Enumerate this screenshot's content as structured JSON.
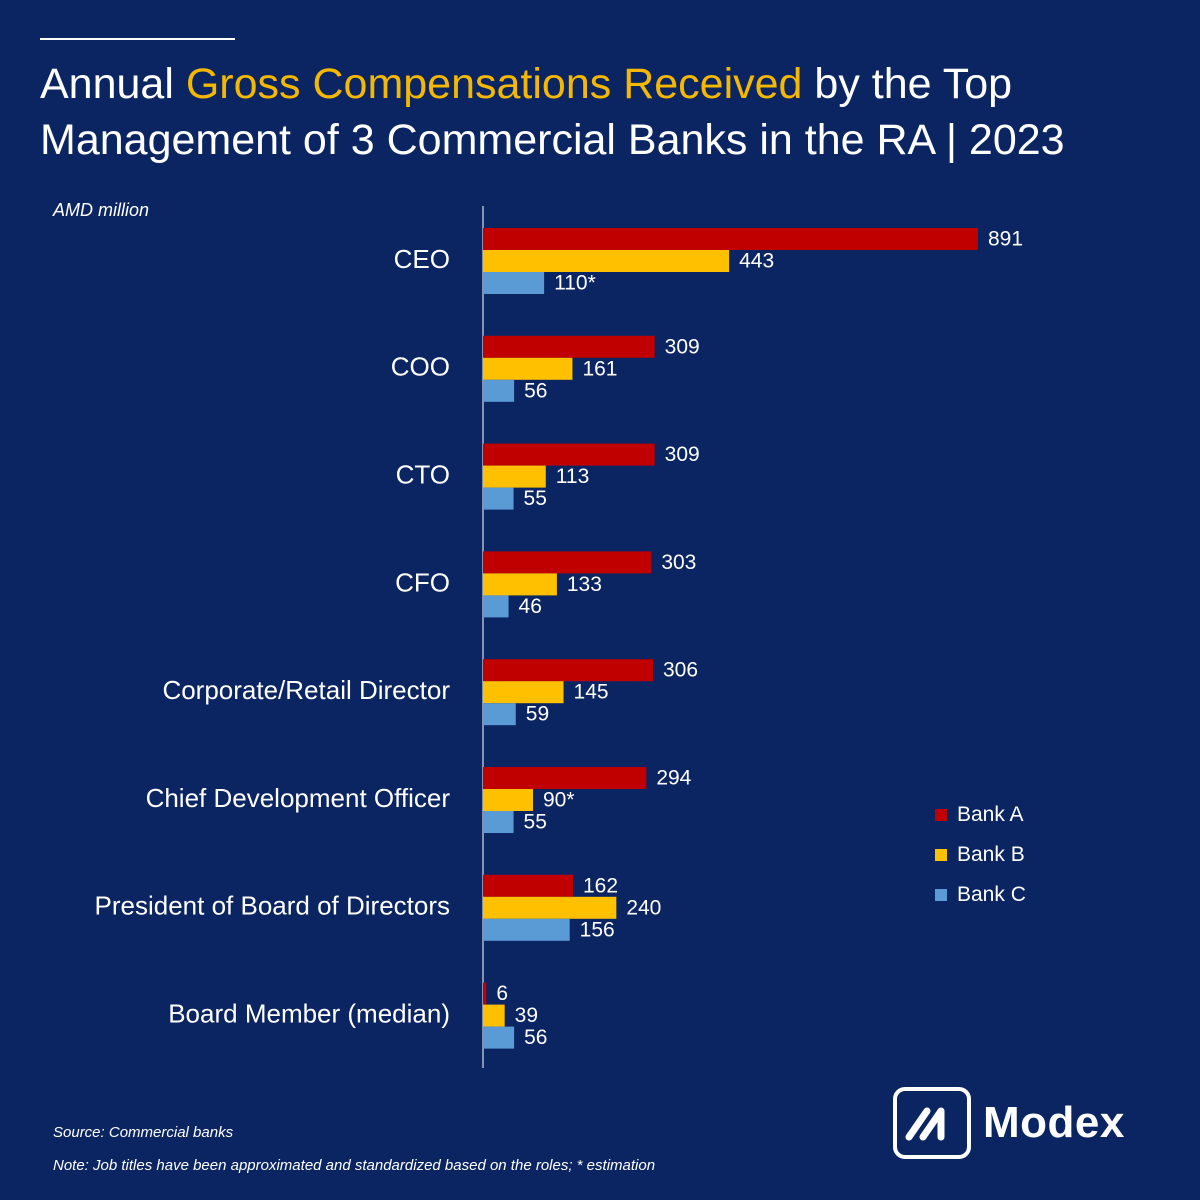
{
  "title": {
    "part1": "Annual ",
    "highlight": "Gross Compensations Received",
    "part2": " by the Top Management of 3 Commercial Banks in the RA | 2023"
  },
  "unit_label": "AMD million",
  "footer": {
    "source": "Source: Commercial banks",
    "note": "Note: Job titles have been approximated and standardized based on the roles; * estimation"
  },
  "logo": {
    "text": "Modex"
  },
  "colors": {
    "background": "#0b2563",
    "highlight": "#f5b800",
    "bank_a": "#c00000",
    "bank_b": "#ffc000",
    "bank_c": "#5b9bd5"
  },
  "chart_data": {
    "type": "bar",
    "orientation": "horizontal",
    "categories": [
      "CEO",
      "COO",
      "CTO",
      "CFO",
      "Corporate/Retail Director",
      "Chief Development Officer",
      "President of Board of Directors",
      "Board Member (median)"
    ],
    "series": [
      {
        "name": "Bank A",
        "color": "#c00000",
        "values": [
          891,
          309,
          309,
          303,
          306,
          294,
          162,
          6
        ],
        "labels": [
          "891",
          "309",
          "309",
          "303",
          "306",
          "294",
          "162",
          "6"
        ]
      },
      {
        "name": "Bank B",
        "color": "#ffc000",
        "values": [
          443,
          161,
          113,
          133,
          145,
          90,
          240,
          39
        ],
        "labels": [
          "443",
          "161",
          "113",
          "133",
          "145",
          "90*",
          "240",
          "39"
        ]
      },
      {
        "name": "Bank C",
        "color": "#5b9bd5",
        "values": [
          110,
          56,
          55,
          46,
          59,
          55,
          156,
          56
        ],
        "labels": [
          "110*",
          "56",
          "55",
          "46",
          "59",
          "55",
          "156",
          "56"
        ]
      }
    ],
    "xlim": [
      0,
      891
    ],
    "grid": false,
    "legend_position": "right"
  }
}
